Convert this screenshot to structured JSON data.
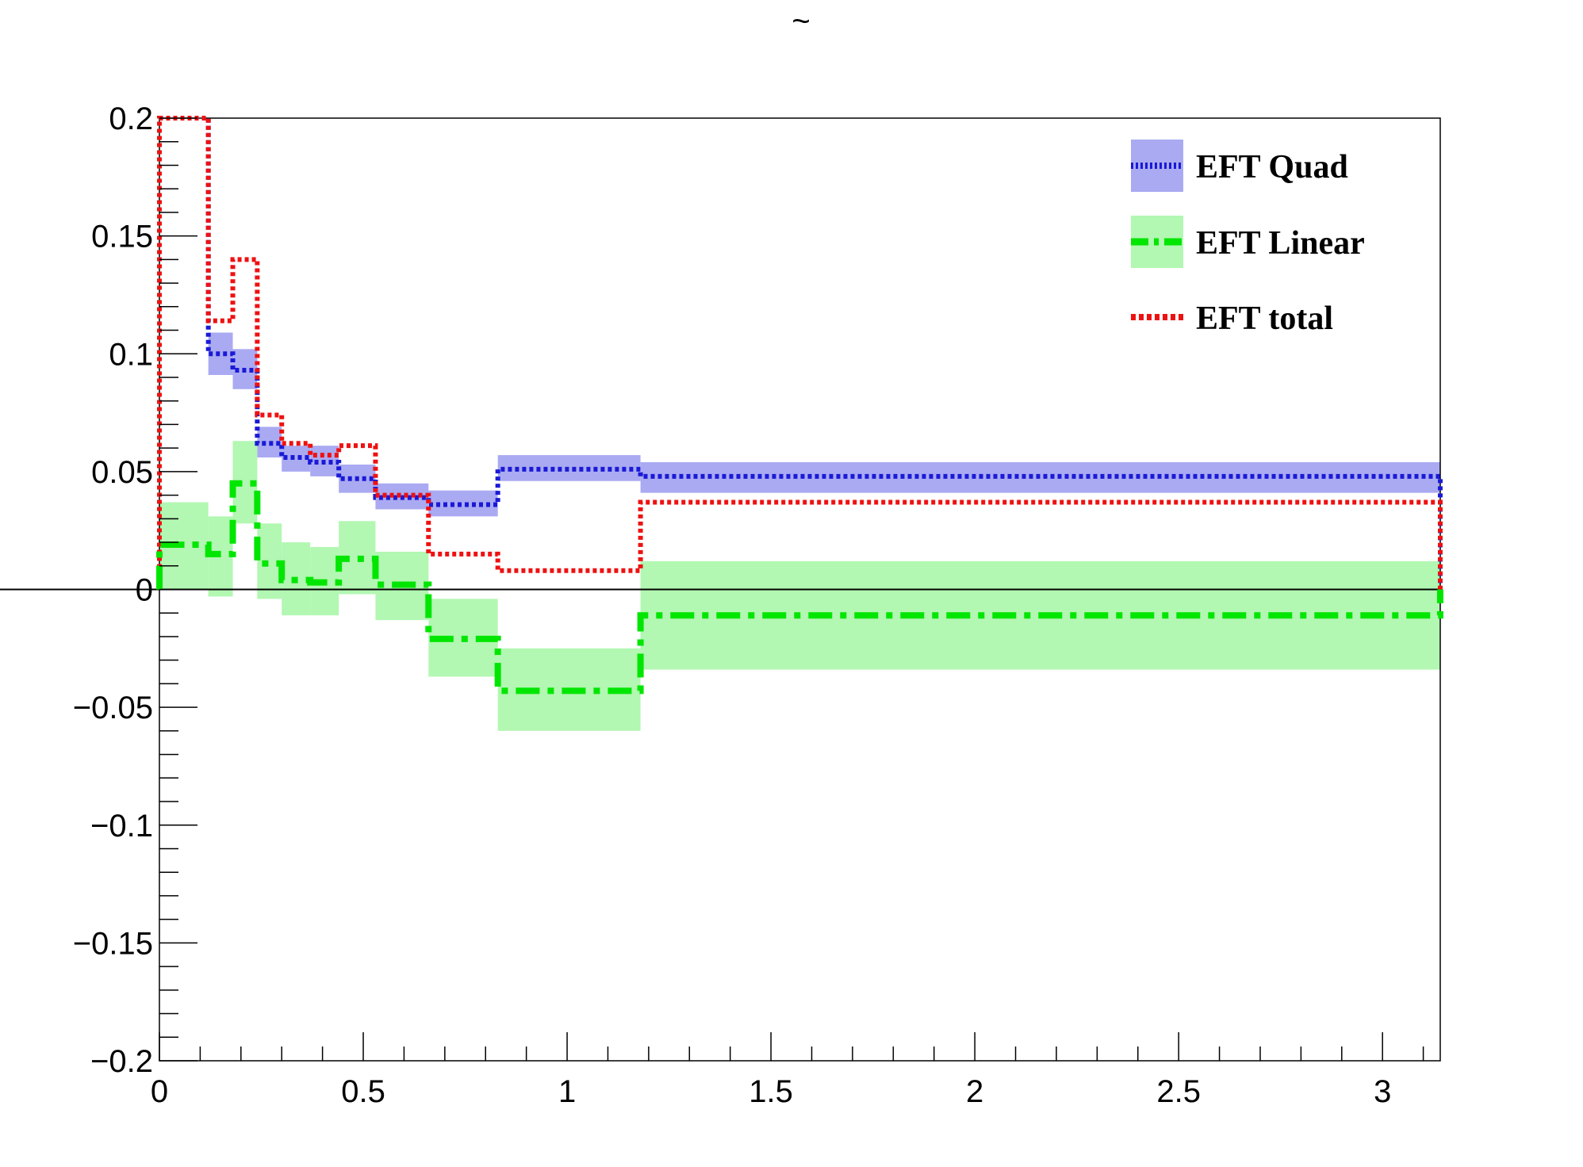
{
  "chart_data": {
    "type": "line",
    "title": "~",
    "xlabel": "",
    "ylabel": "",
    "xlim": [
      0,
      3.1416
    ],
    "ylim": [
      -0.2,
      0.2
    ],
    "x_ticks": [
      "0",
      "0.5",
      "1",
      "1.5",
      "2",
      "2.5",
      "3"
    ],
    "y_ticks": [
      "−0.2",
      "−0.15",
      "−0.1",
      "−0.05",
      "0",
      "0.05",
      "0.1",
      "0.15",
      "0.2"
    ],
    "bin_edges": [
      0,
      0.12,
      0.18,
      0.24,
      0.3,
      0.37,
      0.44,
      0.53,
      0.66,
      0.83,
      1.18,
      3.1416
    ],
    "series": [
      {
        "name": "EFT Quad",
        "color": "#1a1ad6",
        "band_color": "#aaaaf2",
        "style": "dotted",
        "values": [
          0.2,
          0.1,
          0.093,
          0.062,
          0.056,
          0.054,
          0.047,
          0.039,
          0.036,
          0.051,
          0.048
        ],
        "band_low": [
          0.2,
          0.091,
          0.085,
          0.056,
          0.05,
          0.048,
          0.041,
          0.034,
          0.031,
          0.046,
          0.041
        ],
        "band_high": [
          0.2,
          0.109,
          0.102,
          0.069,
          0.061,
          0.061,
          0.053,
          0.045,
          0.042,
          0.057,
          0.054
        ]
      },
      {
        "name": "EFT Linear",
        "color": "#00e600",
        "band_color": "#b2f7b2",
        "style": "dashdot",
        "values": [
          0.019,
          0.015,
          0.045,
          0.011,
          0.004,
          0.003,
          0.013,
          0.002,
          -0.021,
          -0.043,
          -0.011
        ],
        "band_low": [
          0.0,
          -0.003,
          0.028,
          -0.004,
          -0.011,
          -0.011,
          -0.002,
          -0.013,
          -0.037,
          -0.06,
          -0.034
        ],
        "band_high": [
          0.037,
          0.031,
          0.063,
          0.028,
          0.02,
          0.018,
          0.029,
          0.016,
          -0.004,
          -0.025,
          0.012
        ]
      },
      {
        "name": "EFT total",
        "color": "#ee1111",
        "style": "dotted",
        "values": [
          0.2,
          0.114,
          0.14,
          0.074,
          0.062,
          0.057,
          0.061,
          0.04,
          0.015,
          0.008,
          0.037
        ]
      }
    ],
    "legend_position": "top-right",
    "grid": false
  }
}
